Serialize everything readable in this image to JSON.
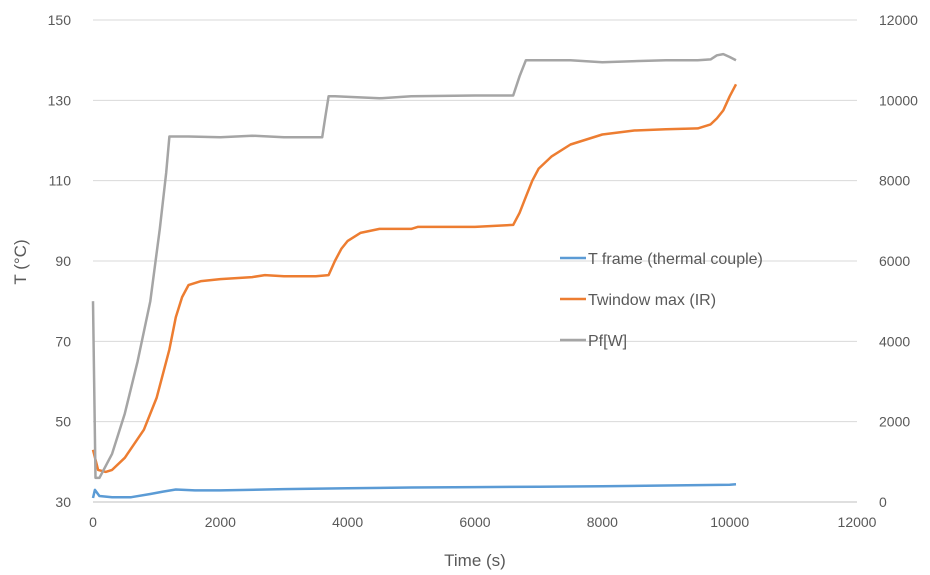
{
  "chart_data": {
    "type": "line",
    "xlabel": "Time (s)",
    "ylabel": "T (°C)",
    "xlim": [
      0,
      12000
    ],
    "ylim_left": [
      30,
      150
    ],
    "ylim_right": [
      0,
      12000
    ],
    "x_ticks": [
      0,
      2000,
      4000,
      6000,
      8000,
      10000,
      12000
    ],
    "y_ticks_left": [
      30,
      50,
      70,
      90,
      110,
      130,
      150
    ],
    "y_ticks_right": [
      0,
      2000,
      4000,
      6000,
      8000,
      10000,
      12000
    ],
    "grid": "horizontal",
    "legend_position": "inside right",
    "series": [
      {
        "name": "T frame (thermal couple)",
        "color": "#5b9bd5",
        "axis": "left",
        "x": [
          0,
          30,
          100,
          300,
          600,
          900,
          1100,
          1300,
          1600,
          2000,
          3000,
          4000,
          5000,
          6000,
          7000,
          8000,
          9000,
          10000,
          10100
        ],
        "y": [
          31,
          33,
          31.5,
          31.2,
          31.2,
          32,
          32.6,
          33.1,
          32.9,
          32.9,
          33.2,
          33.4,
          33.6,
          33.7,
          33.8,
          33.9,
          34.1,
          34.3,
          34.4
        ]
      },
      {
        "name": "Twindow max (IR)",
        "color": "#ed7d31",
        "axis": "left",
        "x": [
          0,
          80,
          200,
          300,
          500,
          800,
          1000,
          1200,
          1300,
          1400,
          1500,
          1700,
          2000,
          2500,
          2700,
          3000,
          3500,
          3700,
          3800,
          3900,
          4000,
          4200,
          4500,
          5000,
          5100,
          5500,
          6000,
          6600,
          6700,
          6800,
          6900,
          7000,
          7200,
          7500,
          8000,
          8500,
          9000,
          9500,
          9700,
          9800,
          9900,
          10000,
          10100
        ],
        "y": [
          43,
          38,
          37.5,
          38,
          41,
          48,
          56,
          68,
          76,
          81,
          84,
          85,
          85.5,
          86,
          86.5,
          86.2,
          86.2,
          86.5,
          90,
          93,
          95,
          97,
          98,
          98,
          98.5,
          98.5,
          98.5,
          99,
          102,
          106,
          110,
          113,
          116,
          119,
          121.5,
          122.5,
          122.8,
          123,
          124,
          125.5,
          127.5,
          131,
          134
        ]
      },
      {
        "name": "Pf[W]",
        "color": "#a5a5a5",
        "axis": "right",
        "x": [
          0,
          40,
          100,
          300,
          500,
          700,
          900,
          1050,
          1150,
          1200,
          1250,
          1500,
          2000,
          2500,
          3000,
          3600,
          3650,
          3700,
          3800,
          4500,
          5000,
          6000,
          6600,
          6700,
          6800,
          7500,
          8000,
          9000,
          9500,
          9700,
          9800,
          9900,
          10000,
          10100
        ],
        "y": [
          5000,
          600,
          600,
          1200,
          2200,
          3500,
          5000,
          6800,
          8200,
          9100,
          9100,
          9100,
          9080,
          9120,
          9080,
          9080,
          9600,
          10100,
          10100,
          10050,
          10100,
          10120,
          10120,
          10600,
          11000,
          11000,
          10950,
          11000,
          11000,
          11020,
          11120,
          11150,
          11080,
          11000
        ]
      }
    ]
  }
}
